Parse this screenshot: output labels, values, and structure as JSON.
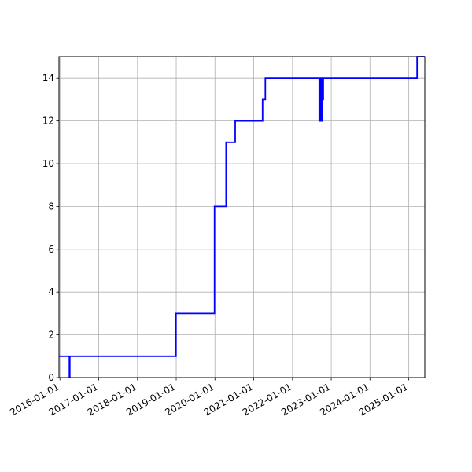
{
  "chart_data": {
    "type": "line",
    "title": "",
    "xlabel": "",
    "ylabel": "",
    "grid": true,
    "x_axis": {
      "type": "date",
      "range": [
        "2015-12-23",
        "2025-06-01"
      ],
      "tick_labels": [
        "2016-01-01",
        "2017-01-01",
        "2018-01-01",
        "2019-01-01",
        "2020-01-01",
        "2021-01-01",
        "2022-01-01",
        "2023-01-01",
        "2024-01-01",
        "2025-01-01"
      ]
    },
    "y_axis": {
      "range": [
        0,
        15
      ],
      "ticks": [
        0,
        2,
        4,
        6,
        8,
        10,
        12,
        14
      ]
    },
    "series": [
      {
        "color": "#0000ff",
        "step": "post",
        "points": [
          {
            "x": "2015-12-23",
            "y": 1
          },
          {
            "x": "2016-03-30",
            "y": 0
          },
          {
            "x": "2016-04-03",
            "y": 1
          },
          {
            "x": "2018-12-30",
            "y": 3
          },
          {
            "x": "2019-12-28",
            "y": 8
          },
          {
            "x": "2020-04-15",
            "y": 11
          },
          {
            "x": "2020-07-10",
            "y": 12
          },
          {
            "x": "2021-03-25",
            "y": 13
          },
          {
            "x": "2021-04-20",
            "y": 14
          },
          {
            "x": "2022-09-10",
            "y": 12
          },
          {
            "x": "2022-09-20",
            "y": 14
          },
          {
            "x": "2022-09-25",
            "y": 12
          },
          {
            "x": "2022-10-05",
            "y": 13
          },
          {
            "x": "2022-10-08",
            "y": 14
          },
          {
            "x": "2022-10-12",
            "y": 13
          },
          {
            "x": "2022-10-18",
            "y": 14
          },
          {
            "x": "2025-03-20",
            "y": 15
          },
          {
            "x": "2025-06-01",
            "y": 15
          }
        ]
      }
    ]
  }
}
